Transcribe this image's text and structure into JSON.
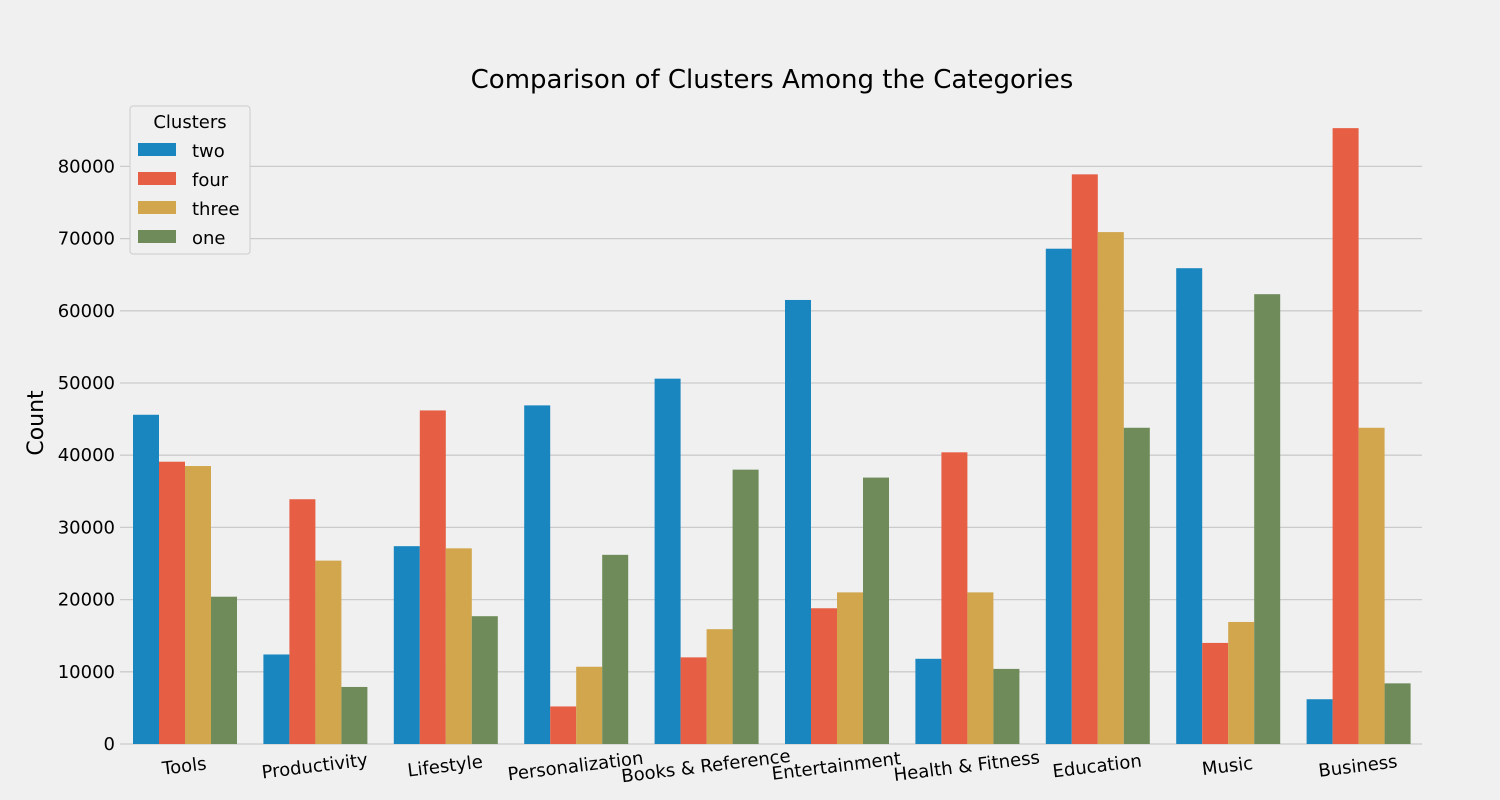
{
  "chart_data": {
    "type": "bar",
    "title": "Comparison of Clusters Among the Categories",
    "xlabel": "",
    "ylabel": "Count",
    "ylim": [
      0,
      88000
    ],
    "yticks": [
      0,
      10000,
      20000,
      30000,
      40000,
      50000,
      60000,
      70000,
      80000
    ],
    "grid": true,
    "legend": {
      "title": "Clusters",
      "placement": "top-left"
    },
    "categories": [
      "Tools",
      "Productivity",
      "Lifestyle",
      "Personalization",
      "Books & Reference",
      "Entertainment",
      "Health & Fitness",
      "Education",
      "Music",
      "Business"
    ],
    "series": [
      {
        "name": "two",
        "color": "#1a86bf",
        "values": [
          45600,
          12400,
          27400,
          46900,
          50600,
          61500,
          11800,
          68600,
          65900,
          6200
        ]
      },
      {
        "name": "four",
        "color": "#e65f45",
        "values": [
          39100,
          33900,
          46200,
          5200,
          12000,
          18800,
          40400,
          78900,
          14000,
          85300
        ]
      },
      {
        "name": "three",
        "color": "#d1a64c",
        "values": [
          38500,
          25400,
          27100,
          10700,
          15900,
          21000,
          21000,
          70900,
          16900,
          43800
        ]
      },
      {
        "name": "one",
        "color": "#6e8b59",
        "values": [
          20400,
          7900,
          17700,
          26200,
          38000,
          36900,
          10400,
          43800,
          62300,
          8400
        ]
      }
    ]
  }
}
